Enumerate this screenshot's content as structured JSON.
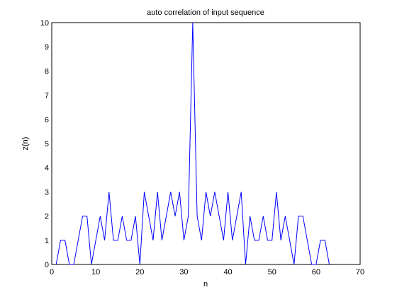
{
  "chart_data": {
    "type": "line",
    "title": "auto correlation of input sequence",
    "xlabel": "n",
    "ylabel": "z(n)",
    "xlim": [
      0,
      70
    ],
    "ylim": [
      0,
      10
    ],
    "xticks": [
      0,
      10,
      20,
      30,
      40,
      50,
      60,
      70
    ],
    "yticks": [
      0,
      1,
      2,
      3,
      4,
      5,
      6,
      7,
      8,
      9,
      10
    ],
    "grid": false,
    "line_color": "#0000ff",
    "series": [
      {
        "x": [
          1,
          2,
          3,
          4,
          5,
          6,
          7,
          8,
          9,
          10,
          11,
          12,
          13,
          14,
          15,
          16,
          17,
          18,
          19,
          20,
          21,
          22,
          23,
          24,
          25,
          26,
          27,
          28,
          29,
          30,
          31,
          32,
          33,
          34,
          35,
          36,
          37,
          38,
          39,
          40,
          41,
          42,
          43,
          44,
          45,
          46,
          47,
          48,
          49,
          50,
          51,
          52,
          53,
          54,
          55,
          56,
          57,
          58,
          59,
          60,
          61,
          62,
          63
        ],
        "y": [
          0,
          1,
          1,
          0,
          0,
          1,
          2,
          2,
          0,
          1,
          2,
          1,
          3,
          1,
          1,
          2,
          1,
          1,
          2,
          0,
          3,
          2,
          1,
          3,
          1,
          2,
          3,
          2,
          3,
          1,
          2,
          10,
          2,
          1,
          3,
          2,
          3,
          2,
          1,
          3,
          1,
          2,
          3,
          0,
          2,
          1,
          1,
          2,
          1,
          1,
          3,
          1,
          2,
          1,
          0,
          2,
          2,
          1,
          0,
          0,
          1,
          1,
          0
        ]
      }
    ]
  }
}
